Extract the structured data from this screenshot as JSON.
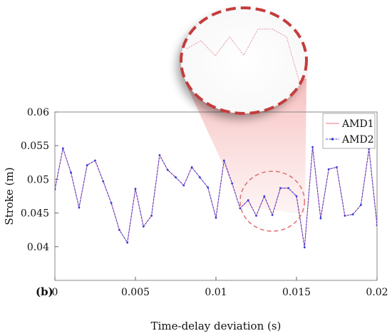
{
  "panel_label": "(b)",
  "chart_data": {
    "type": "line",
    "title": "",
    "xlabel": "Time-delay deviation (s)",
    "ylabel": "Stroke (m)",
    "xlim": [
      0,
      0.02
    ],
    "ylim": [
      0.035,
      0.06
    ],
    "x_ticks": [
      0,
      0.005,
      0.01,
      0.015,
      0.02
    ],
    "x_tick_labels": [
      "0",
      "0.005",
      "0.01",
      "0.015",
      "0.02"
    ],
    "y_ticks": [
      0.04,
      0.045,
      0.05,
      0.055,
      0.06
    ],
    "y_tick_labels": [
      "0.04",
      "0.045",
      "0.05",
      "0.055",
      "0.06"
    ],
    "grid": false,
    "legend_position": "top-right",
    "x": [
      0,
      0.0005,
      0.001,
      0.0015,
      0.002,
      0.0025,
      0.003,
      0.0035,
      0.004,
      0.0045,
      0.005,
      0.0055,
      0.006,
      0.0065,
      0.007,
      0.0075,
      0.008,
      0.0085,
      0.009,
      0.0095,
      0.01,
      0.0105,
      0.011,
      0.0115,
      0.012,
      0.0125,
      0.013,
      0.0135,
      0.014,
      0.0145,
      0.015,
      0.0155,
      0.016,
      0.0165,
      0.017,
      0.0175,
      0.018,
      0.0185,
      0.019,
      0.0195,
      0.02
    ],
    "series": [
      {
        "name": "AMD1",
        "color": "#f08c9b",
        "values": [
          0.0485,
          0.0546,
          0.051,
          0.0458,
          0.0521,
          0.0528,
          0.0497,
          0.0465,
          0.0425,
          0.0406,
          0.0486,
          0.043,
          0.0446,
          0.0536,
          0.0514,
          0.0503,
          0.0491,
          0.0518,
          0.0503,
          0.0488,
          0.0443,
          0.0528,
          0.0494,
          0.0457,
          0.0469,
          0.0446,
          0.0475,
          0.0447,
          0.0487,
          0.0487,
          0.0475,
          0.0399,
          0.0548,
          0.0442,
          0.0515,
          0.0518,
          0.0446,
          0.0448,
          0.0462,
          0.0545,
          0.0432
        ]
      },
      {
        "name": "AMD2",
        "color": "#3a3adc",
        "values": [
          0.0485,
          0.0546,
          0.051,
          0.0458,
          0.0521,
          0.0528,
          0.0497,
          0.0465,
          0.0425,
          0.0406,
          0.0486,
          0.043,
          0.0446,
          0.0536,
          0.0514,
          0.0503,
          0.0491,
          0.0518,
          0.0503,
          0.0488,
          0.0443,
          0.0528,
          0.0494,
          0.0457,
          0.0469,
          0.0446,
          0.0475,
          0.0447,
          0.0487,
          0.0487,
          0.0475,
          0.0399,
          0.0548,
          0.0442,
          0.0515,
          0.0518,
          0.0446,
          0.0448,
          0.0462,
          0.0545,
          0.0432
        ]
      }
    ],
    "annotations": [
      {
        "type": "zoom-ellipse",
        "x_range": [
          0.0115,
          0.0155
        ],
        "y_range": [
          0.0423,
          0.0512
        ],
        "color": "#e05555"
      }
    ]
  }
}
